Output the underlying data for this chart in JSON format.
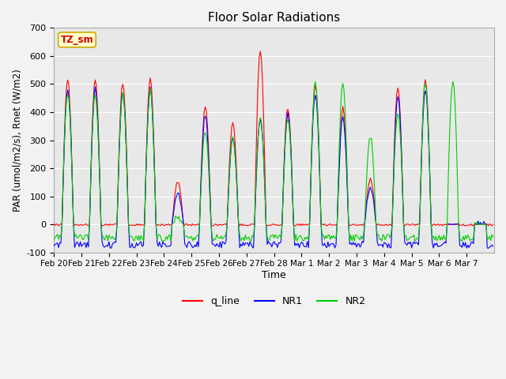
{
  "title": "Floor Solar Radiations",
  "xlabel": "Time",
  "ylabel": "PAR (umol/m2/s), Rnet (W/m2)",
  "ylim": [
    -100,
    700
  ],
  "xlim": [
    0,
    384
  ],
  "yticks": [
    -100,
    0,
    100,
    200,
    300,
    400,
    500,
    600,
    700
  ],
  "xtick_labels": [
    "Feb 20",
    "Feb 21",
    "Feb 22",
    "Feb 23",
    "Feb 24",
    "Feb 25",
    "Feb 26",
    "Feb 27",
    "Feb 28",
    "Mar 1",
    "Mar 2",
    "Mar 3",
    "Mar 4",
    "Mar 5",
    "Mar 6",
    "Mar 7"
  ],
  "xtick_positions": [
    0,
    24,
    48,
    72,
    96,
    120,
    144,
    168,
    192,
    216,
    240,
    264,
    288,
    312,
    336,
    360
  ],
  "tag_label": "TZ_sm",
  "tag_bg": "#ffffcc",
  "tag_border": "#ccaa00",
  "colors": {
    "q_line": "#ff0000",
    "NR1": "#0000ff",
    "NR2": "#00cc00"
  },
  "plot_bg": "#e8e8e8",
  "fig_bg": "#f2f2f2",
  "q_peaks": [
    515,
    515,
    505,
    520,
    150,
    420,
    360,
    620,
    415,
    500,
    415,
    160,
    490,
    515,
    0,
    0
  ],
  "nr1_peaks": [
    480,
    480,
    470,
    485,
    110,
    390,
    310,
    375,
    390,
    465,
    380,
    130,
    455,
    480,
    0,
    0
  ],
  "nr2_peaks": [
    470,
    460,
    465,
    480,
    25,
    330,
    305,
    380,
    375,
    505,
    505,
    315,
    395,
    505,
    515,
    0
  ],
  "night_nr1": -80,
  "night_nr2": -50,
  "night_q": -2,
  "line_width": 0.8
}
